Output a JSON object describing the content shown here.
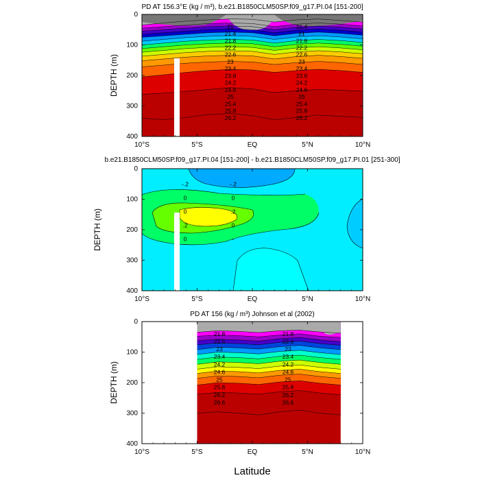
{
  "figure": {
    "xlabel": "Latitude",
    "x_tick_labels": [
      "10°S",
      "5°S",
      "EQ",
      "5°N",
      "10°N"
    ],
    "y_tick_labels": [
      "0",
      "100",
      "200",
      "300",
      "400"
    ]
  },
  "chart_data": [
    {
      "type": "heatmap",
      "title": "PD AT 156.3°E (kg / m³), b.e21.B1850CLM50SP.f09_g17.PI.04 [151-200]",
      "ylabel": "DEPTH (m)",
      "xlabel": "",
      "x_ticks": [
        -10,
        -5,
        0,
        5,
        10
      ],
      "xlim": [
        -10,
        10
      ],
      "ylim": [
        400,
        0
      ],
      "y_ticks": [
        0,
        100,
        200,
        300,
        400
      ],
      "contour_labels": [
        "21",
        "21.4",
        "21.4",
        "21",
        "21.8",
        "21.8",
        "22.2",
        "22.2",
        "22.6",
        "22.6",
        "23",
        "23",
        "23.4",
        "23.4",
        "23.8",
        "23.8",
        "24.2",
        "24.2",
        "24.6",
        "24.6",
        "25",
        "25",
        "25.4",
        "25.4",
        "25.8",
        "25.8",
        "26.2",
        "26.2"
      ],
      "density_contours": [
        {
          "level": 21.0,
          "depth": [
            35,
            28,
            22,
            18,
            15,
            16,
            25,
            18,
            15,
            20,
            25
          ]
        },
        {
          "level": 21.4,
          "depth": [
            45,
            40,
            35,
            30,
            28,
            30,
            40,
            32,
            28,
            32,
            38
          ]
        },
        {
          "level": 21.8,
          "depth": [
            55,
            50,
            45,
            40,
            38,
            40,
            50,
            42,
            38,
            42,
            48
          ]
        },
        {
          "level": 22.2,
          "depth": [
            65,
            60,
            55,
            50,
            48,
            50,
            60,
            52,
            48,
            52,
            58
          ]
        },
        {
          "level": 22.6,
          "depth": [
            75,
            70,
            65,
            60,
            58,
            60,
            70,
            62,
            58,
            62,
            68
          ]
        },
        {
          "level": 23.0,
          "depth": [
            88,
            82,
            76,
            72,
            70,
            72,
            82,
            74,
            70,
            74,
            80
          ]
        },
        {
          "level": 23.4,
          "depth": [
            100,
            94,
            88,
            84,
            82,
            84,
            94,
            86,
            82,
            86,
            92
          ]
        },
        {
          "level": 23.8,
          "depth": [
            112,
            106,
            100,
            96,
            94,
            96,
            106,
            98,
            94,
            98,
            104
          ]
        },
        {
          "level": 24.2,
          "depth": [
            124,
            118,
            112,
            108,
            106,
            108,
            118,
            110,
            106,
            110,
            116
          ]
        },
        {
          "level": 24.6,
          "depth": [
            137,
            131,
            125,
            121,
            119,
            121,
            131,
            123,
            119,
            123,
            129
          ]
        },
        {
          "level": 25.0,
          "depth": [
            152,
            146,
            140,
            136,
            134,
            136,
            146,
            138,
            134,
            138,
            144
          ]
        },
        {
          "level": 25.4,
          "depth": [
            172,
            166,
            160,
            156,
            154,
            156,
            164,
            158,
            154,
            158,
            164
          ]
        },
        {
          "level": 25.8,
          "depth": [
            205,
            198,
            190,
            184,
            180,
            182,
            190,
            184,
            180,
            184,
            190
          ]
        },
        {
          "level": 26.2,
          "depth": [
            262,
            258,
            252,
            246,
            240,
            244,
            256,
            250,
            246,
            248,
            252
          ]
        },
        {
          "level": 26.6,
          "depth": [
            340,
            345,
            338,
            328,
            325,
            332,
            345,
            338,
            330,
            334,
            338
          ]
        }
      ]
    },
    {
      "type": "heatmap",
      "title": "b.e21.B1850CLM50SP.f09_g17.PI.04 [151-200] - b.e21.B1850CLM50SP.f09_g17.PI.01 [251-300]",
      "ylabel": "DEPTH (m)",
      "xlabel": "",
      "x_ticks": [
        -10,
        -5,
        0,
        5,
        10
      ],
      "xlim": [
        -10,
        10
      ],
      "ylim": [
        400,
        0
      ],
      "y_ticks": [
        0,
        100,
        200,
        300,
        400
      ],
      "contour_labels": [
        "-.2",
        "-.2",
        "0",
        "0",
        "0",
        ".2",
        ".2",
        "0",
        "0",
        "-"
      ],
      "difference_levels": [
        -0.4,
        -0.2,
        0,
        0.2,
        0.4
      ]
    },
    {
      "type": "heatmap",
      "title": "PD AT 156 (kg / m³) Johnson et al (2002)",
      "ylabel": "DEPTH (m)",
      "xlabel": "Latitude",
      "x_ticks": [
        -10,
        -5,
        0,
        5,
        10
      ],
      "xlim": [
        -10,
        10
      ],
      "ylim": [
        400,
        0
      ],
      "y_ticks": [
        0,
        100,
        200,
        300,
        400
      ],
      "data_extent_lat": [
        -5,
        8
      ],
      "contour_labels": [
        "21.8",
        "21.8",
        "22.6",
        "22.6",
        "23",
        "23",
        "23.4",
        "23.4",
        "24.2",
        "24.2",
        "24.6",
        "24.6",
        "25",
        "25",
        "25.8",
        "25.8",
        "26.2",
        "26.2",
        "26.6",
        "26.6"
      ],
      "density_contours": [
        {
          "level": 21.4,
          "depth": [
            35,
            30,
            32,
            36,
            30,
            28,
            34,
            38
          ]
        },
        {
          "level": 21.8,
          "depth": [
            48,
            44,
            46,
            50,
            44,
            40,
            48,
            52
          ]
        },
        {
          "level": 22.2,
          "depth": [
            62,
            58,
            60,
            64,
            56,
            52,
            60,
            66
          ]
        },
        {
          "level": 22.6,
          "depth": [
            76,
            70,
            72,
            76,
            68,
            64,
            72,
            78
          ]
        },
        {
          "level": 23.0,
          "depth": [
            92,
            84,
            86,
            90,
            82,
            78,
            86,
            92
          ]
        },
        {
          "level": 23.4,
          "depth": [
            108,
            100,
            102,
            106,
            98,
            94,
            102,
            108
          ]
        },
        {
          "level": 23.8,
          "depth": [
            124,
            116,
            118,
            122,
            114,
            110,
            118,
            124
          ]
        },
        {
          "level": 24.2,
          "depth": [
            140,
            132,
            134,
            138,
            130,
            126,
            134,
            140
          ]
        },
        {
          "level": 24.6,
          "depth": [
            156,
            148,
            150,
            154,
            146,
            142,
            150,
            156
          ]
        },
        {
          "level": 25.0,
          "depth": [
            170,
            162,
            164,
            168,
            160,
            156,
            164,
            170
          ]
        },
        {
          "level": 25.4,
          "depth": [
            186,
            178,
            180,
            184,
            176,
            172,
            180,
            186
          ]
        },
        {
          "level": 25.8,
          "depth": [
            208,
            200,
            202,
            206,
            198,
            194,
            202,
            208
          ]
        },
        {
          "level": 26.2,
          "depth": [
            238,
            232,
            234,
            238,
            230,
            226,
            234,
            240
          ]
        },
        {
          "level": 26.6,
          "depth": [
            300,
            296,
            300,
            306,
            296,
            290,
            300,
            306
          ]
        }
      ]
    }
  ],
  "colors": {
    "background": "#ffffff",
    "density_scale": [
      "#777777",
      "#aaaaaa",
      "#ff00ff",
      "#cc00cc",
      "#9900cc",
      "#4400cc",
      "#0000cc",
      "#0044dd",
      "#0099ff",
      "#00ccff",
      "#00ffcc",
      "#00ff66",
      "#66ff00",
      "#ccff00",
      "#ffff00",
      "#ffcc00",
      "#ff9900",
      "#ff6600",
      "#ff3300",
      "#dd0000",
      "#bb0000"
    ],
    "difference_scale": {
      "lt_-0.4": "#0088ff",
      "-0.4_-0.2": "#00aaff",
      "-0.2_0": "#00eeff",
      "0_0.2": "#00ee44",
      "0.2_0.4": "#44ff00",
      "gt_0.4": "#ffff00"
    }
  }
}
